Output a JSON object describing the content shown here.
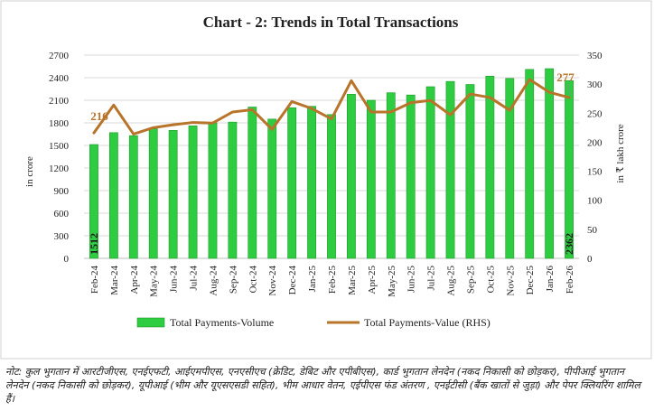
{
  "chart_data": {
    "type": "bar",
    "title": "Chart - 2: Trends in Total Transactions",
    "categories": [
      "Feb-24",
      "Mar-24",
      "Apr-24",
      "May-24",
      "Jun-24",
      "Jul-24",
      "Aug-24",
      "Sep-24",
      "Oct-24",
      "Nov-24",
      "Dec-24",
      "Jan-25",
      "Feb-25",
      "Mar-25",
      "Apr-25",
      "May-25",
      "Jun-25",
      "Jul-25",
      "Aug-25",
      "Sep-25",
      "Oct-25",
      "Nov-25",
      "Dec-25",
      "Jan-26",
      "Feb-26"
    ],
    "ylabel": "in crore",
    "y2label": "in ₹ lakh crore",
    "ylim": [
      0,
      2700
    ],
    "y2lim": [
      0,
      350
    ],
    "yticks": [
      "0",
      "300",
      "600",
      "900",
      "1200",
      "1500",
      "1800",
      "2100",
      "2400",
      "2700"
    ],
    "y2ticks": [
      "0",
      "50",
      "100",
      "150",
      "200",
      "250",
      "300",
      "350"
    ],
    "legend_position": "bottom",
    "series": [
      {
        "name": "Total Payments-Volume",
        "type": "bar",
        "axis": "left",
        "color": "#2ecc40",
        "values": [
          1512,
          1670,
          1630,
          1720,
          1700,
          1760,
          1800,
          1810,
          2010,
          1850,
          2000,
          2020,
          1910,
          2180,
          2100,
          2200,
          2170,
          2280,
          2350,
          2310,
          2420,
          2390,
          2510,
          2520,
          2362
        ]
      },
      {
        "name": "Total Payments-Value (RHS)",
        "type": "line",
        "axis": "right",
        "color": "#b8742a",
        "values": [
          216,
          264,
          214,
          225,
          230,
          234,
          233,
          252,
          256,
          222,
          270,
          258,
          240,
          306,
          252,
          252,
          268,
          272,
          247,
          283,
          277,
          255,
          308,
          286,
          277
        ]
      }
    ],
    "data_labels": [
      {
        "series": "Total Payments-Volume",
        "index": 0,
        "text": "1512"
      },
      {
        "series": "Total Payments-Volume",
        "index": 24,
        "text": "2362"
      },
      {
        "series": "Total Payments-Value (RHS)",
        "index": 0,
        "text": "216"
      },
      {
        "series": "Total Payments-Value (RHS)",
        "index": 24,
        "text": "277"
      }
    ]
  },
  "note": "नोट: कुल भुगतान में आरटीजीएस, एनईएफटी, आईएमपीएस, एनएसीएच (क्रेडिट, डेबिट और एपीबीएस), कार्ड भुगतान लेनदेन (नकद निकासी को छोड़कर), पीपीआई भुगतान लेनदेन (नकद निकासी को छोड़कर), यूपीआई (भीम और यूएसएसडी सहित), भीम आधार वेतन, एईपीएस फंड अंतरण , एनईटीसी (बैंक खातों से जुड़ा) और पेपर क्लियरिंग शामिल हैं।"
}
